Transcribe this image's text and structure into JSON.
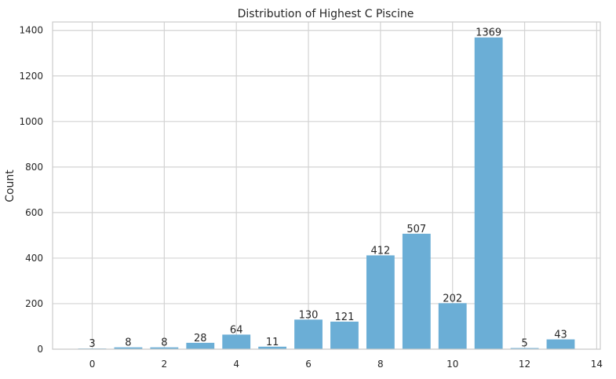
{
  "chart_data": {
    "type": "bar",
    "title": "Distribution of Highest C Piscine",
    "xlabel": "",
    "ylabel": "Count",
    "x": [
      0,
      1,
      2,
      3,
      4,
      5,
      6,
      7,
      8,
      9,
      10,
      11,
      12,
      13
    ],
    "values": [
      3,
      8,
      8,
      28,
      64,
      11,
      130,
      121,
      412,
      507,
      202,
      1369,
      5,
      43
    ],
    "value_labels": [
      "3",
      "8",
      "8",
      "28",
      "64",
      "11",
      "130",
      "121",
      "412",
      "507",
      "202",
      "1369",
      "5",
      "43"
    ],
    "xticks": [
      "0",
      "2",
      "4",
      "6",
      "8",
      "10",
      "12",
      "14"
    ],
    "yticks": [
      "0",
      "200",
      "400",
      "600",
      "800",
      "1000",
      "1200",
      "1400"
    ],
    "xlim": [
      -1.1,
      14.1
    ],
    "ylim": [
      0,
      1437
    ],
    "grid": true,
    "bar_color": "#6baed6",
    "grid_color": "#d3d3d3",
    "axis_color": "#cccccc"
  }
}
